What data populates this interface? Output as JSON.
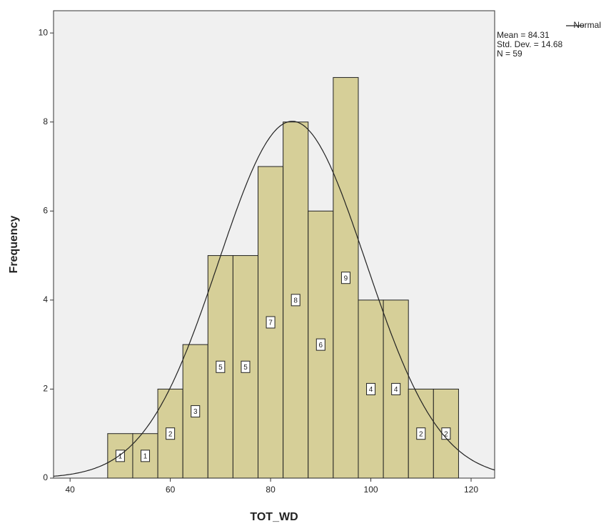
{
  "chart_data": {
    "type": "histogram",
    "x_label": "TOT_WD",
    "y_label": "Frequency",
    "bins": [
      47.5,
      52.5,
      57.5,
      62.5,
      67.5,
      72.5,
      77.5,
      82.5,
      87.5,
      92.5,
      97.5,
      102.5,
      107.5,
      112.5,
      117.5
    ],
    "values": [
      1,
      1,
      2,
      3,
      5,
      5,
      7,
      8,
      6,
      9,
      4,
      4,
      2,
      2
    ],
    "color": "#d6cf98",
    "edge_color": "#222222",
    "background": "#f0f0f0",
    "xlim": [
      36.7,
      124.7
    ],
    "xticks": [
      40,
      60,
      80,
      100,
      120
    ],
    "ylim": [
      0,
      10.5
    ],
    "yticks": [
      0,
      2,
      4,
      6,
      8,
      10
    ],
    "curve": {
      "name": "Normal",
      "mean": {
        "value": 84.31,
        "label": "Mean = 84.31"
      },
      "sd": {
        "value": 14.68,
        "label": "Std. Dev. = 14.68"
      },
      "n": {
        "value": 59,
        "label": "N = 59"
      }
    },
    "legend": "top-right"
  }
}
